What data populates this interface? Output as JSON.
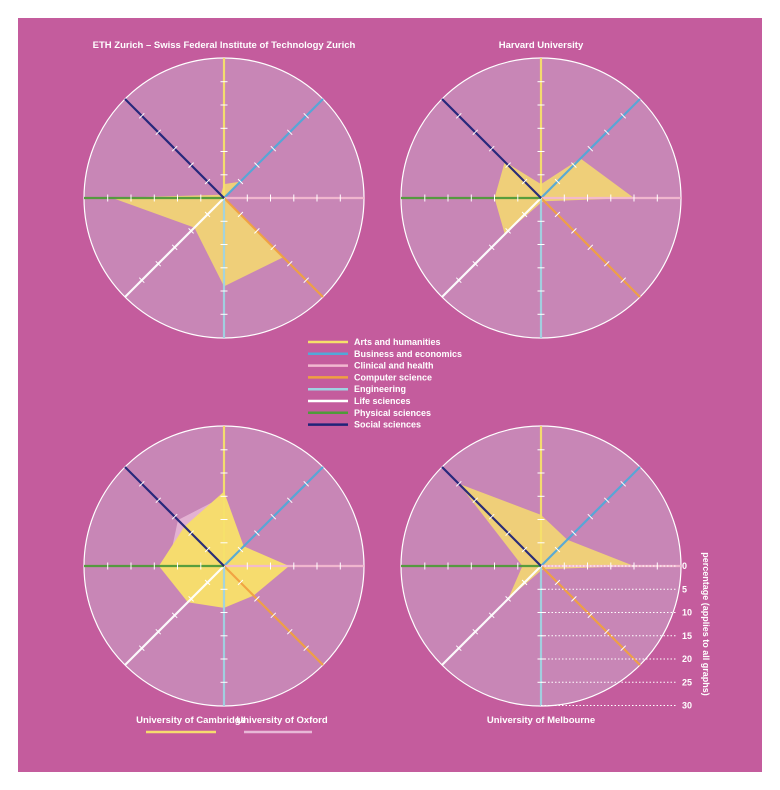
{
  "colors": {
    "background": "#c45c9d",
    "disc": "#c886b6",
    "disc_stroke": "#ffffff",
    "primary_fill": "#f6dc6e",
    "secondary_fill": "#e7b8d7"
  },
  "legend": {
    "items": [
      {
        "label": "Arts and humanities",
        "color": "#f6e06a"
      },
      {
        "label": "Business and economics",
        "color": "#52a8d8"
      },
      {
        "label": "Clinical and health",
        "color": "#f2b8d0"
      },
      {
        "label": "Computer science",
        "color": "#f0a040"
      },
      {
        "label": "Engineering",
        "color": "#9fd3e2"
      },
      {
        "label": "Life sciences",
        "color": "#ffffff"
      },
      {
        "label": "Physical sciences",
        "color": "#4f9a3a"
      },
      {
        "label": "Social sciences",
        "color": "#1f2378"
      }
    ]
  },
  "scale": {
    "ticks": [
      "0",
      "5",
      "10",
      "15",
      "20",
      "25",
      "30"
    ],
    "label": "percentage (applies to all graphs)"
  },
  "chart_data": [
    {
      "type": "radar",
      "title": "ETH Zurich – Swiss Federal Institute of Technology Zurich",
      "axes": [
        "Arts and humanities",
        "Business and economics",
        "Clinical and health",
        "Computer science",
        "Engineering",
        "Life sciences",
        "Physical sciences",
        "Social sciences"
      ],
      "rmax": 30,
      "series": [
        {
          "values": [
            3,
            5,
            0,
            18,
            19,
            9,
            24,
            1
          ]
        }
      ]
    },
    {
      "type": "radar",
      "title": "Harvard University",
      "axes": [
        "Arts and humanities",
        "Business and economics",
        "Clinical and health",
        "Computer science",
        "Engineering",
        "Life sciences",
        "Physical sciences",
        "Social sciences"
      ],
      "rmax": 30,
      "series": [
        {
          "values": [
            3,
            12,
            20,
            1,
            1,
            11,
            10,
            11
          ]
        }
      ]
    },
    {
      "type": "radar",
      "title_parts": [
        "University of Cambridge",
        "/",
        "University of Oxford"
      ],
      "axes": [
        "Arts and humanities",
        "Business and economics",
        "Clinical and health",
        "Computer science",
        "Engineering",
        "Life sciences",
        "Physical sciences",
        "Social sciences"
      ],
      "rmax": 30,
      "series": [
        {
          "name": "University of Cambridge",
          "color": "#f6dc6e",
          "values": [
            16,
            6,
            14,
            9,
            9,
            11,
            14,
            12
          ]
        },
        {
          "name": "University of Oxford",
          "color": "#e7b8d7",
          "values": [
            15,
            6,
            13,
            9,
            8,
            10,
            12,
            14
          ]
        }
      ]
    },
    {
      "type": "radar",
      "title": "University of Melbourne",
      "axes": [
        "Arts and humanities",
        "Business and economics",
        "Clinical and health",
        "Computer science",
        "Engineering",
        "Life sciences",
        "Physical sciences",
        "Social sciences"
      ],
      "rmax": 30,
      "series": [
        {
          "values": [
            11,
            8,
            20,
            1,
            1,
            10,
            4,
            25
          ]
        }
      ]
    }
  ]
}
